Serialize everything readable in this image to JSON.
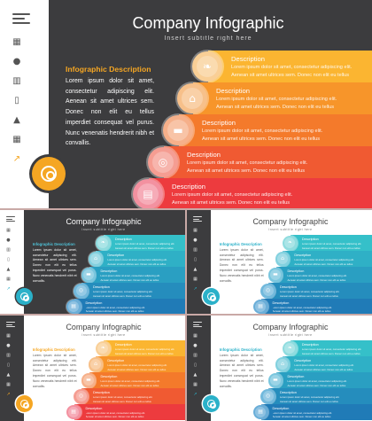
{
  "title": "Company Infographic",
  "subtitle": "Insert subtitle right here",
  "intro": {
    "heading": "Infographic Description",
    "body": "Lorem ipsum dolor sit amet, consectetur adipiscing elit. Aenean sit amet ultrices sem. Donec non elit eu tellus imperdiet consequat vel purus. Nunc venenatis hendrerit nibh et convallis."
  },
  "steps": [
    {
      "title": "Description",
      "line1": "Lorem ipsum dolor sit amet, consectetur adipiscing elit.",
      "line2": "Aenean sit amet ultrices sem. Donec non elit eu tellus",
      "icon": "leaf-icon"
    },
    {
      "title": "Description",
      "line1": "Lorem ipsum dolor sit amet, consectetur adipiscing elit.",
      "line2": "Aenean sit amet ultrices sem. Donec non elit eu tellus",
      "icon": "house-icon"
    },
    {
      "title": "Description",
      "line1": "Lorem ipsum dolor sit amet, consectetur adipiscing elit.",
      "line2": "Aenean sit amet ultrices sem. Donec non elit eu tellus",
      "icon": "hat-icon"
    },
    {
      "title": "Description",
      "line1": "Lorem ipsum dolor sit amet, consectetur adipiscing elit.",
      "line2": "Aenean sit amet ultrices sem. Donec non elit eu tellus",
      "icon": "target-icon"
    },
    {
      "title": "Description",
      "line1": "Lorem ipsum dolor sit amet, consectetur adipiscing elit.",
      "line2": "Aenean sit amet ultrices sem. Donec non elit eu tellus",
      "icon": "chart-icon"
    }
  ],
  "sidebar_icons": [
    "building-icon",
    "people-icon",
    "book-icon",
    "phone-icon",
    "thumbs-up-icon",
    "grid-icon",
    "trend-icon"
  ],
  "themes": [
    {
      "name": "dark-warm",
      "slide_bg": "#3c3c3e",
      "sidebar_bg": "#ffffff",
      "title_color": "#ffffff",
      "body_color": "#ffffff",
      "heading_color": "#f5a623",
      "accent": "#f5a623",
      "bands": [
        "#fbb531",
        "#f7952a",
        "#f47a2b",
        "#f05a32",
        "#ed3b3e"
      ],
      "circles": [
        "#f9cf96",
        "#f7c08a",
        "#f6b08a",
        "#f59d92",
        "#f391a0"
      ]
    },
    {
      "name": "dark-cool",
      "slide_bg": "#3c3c3e",
      "sidebar_bg": "#ffffff",
      "title_color": "#ffffff",
      "body_color": "#ffffff",
      "heading_color": "#4fc3d9",
      "accent": "#2bb1c9",
      "bands": [
        "#35c0c9",
        "#2fb0c6",
        "#2a9fc2",
        "#258dbd",
        "#207bb7"
      ],
      "circles": [
        "#8fdcdf",
        "#83d1df",
        "#7ac6de",
        "#72b9dc",
        "#6aaed8"
      ]
    },
    {
      "name": "light-cool",
      "slide_bg": "#ffffff",
      "sidebar_bg": "#3c3c3e",
      "title_color": "#444444",
      "body_color": "#555555",
      "heading_color": "#2bb1c9",
      "accent": "#2bb1c9",
      "bands": [
        "#35c0c9",
        "#2fb0c6",
        "#2a9fc2",
        "#258dbd",
        "#207bb7"
      ],
      "circles": [
        "#8fdcdf",
        "#83d1df",
        "#7ac6de",
        "#72b9dc",
        "#6aaed8"
      ]
    },
    {
      "name": "light-warm",
      "slide_bg": "#ffffff",
      "sidebar_bg": "#3c3c3e",
      "title_color": "#444444",
      "body_color": "#555555",
      "heading_color": "#f5a623",
      "accent": "#f5a623",
      "bands": [
        "#fbb531",
        "#f7952a",
        "#f47a2b",
        "#f05a32",
        "#ed3b3e"
      ],
      "circles": [
        "#f9cf96",
        "#f7c08a",
        "#f6b08a",
        "#f59d92",
        "#f391a0"
      ]
    },
    {
      "name": "light-cool-alt",
      "slide_bg": "#ffffff",
      "sidebar_bg": "#3c3c3e",
      "title_color": "#444444",
      "body_color": "#555555",
      "heading_color": "#2bb1c9",
      "accent": "#2bb1c9",
      "bands": [
        "#35c0c9",
        "#2fb0c6",
        "#2a9fc2",
        "#258dbd",
        "#207bb7"
      ],
      "circles": [
        "#8fdcdf",
        "#83d1df",
        "#7ac6de",
        "#72b9dc",
        "#6aaed8"
      ]
    }
  ],
  "separator_color": "#c9a9a6"
}
